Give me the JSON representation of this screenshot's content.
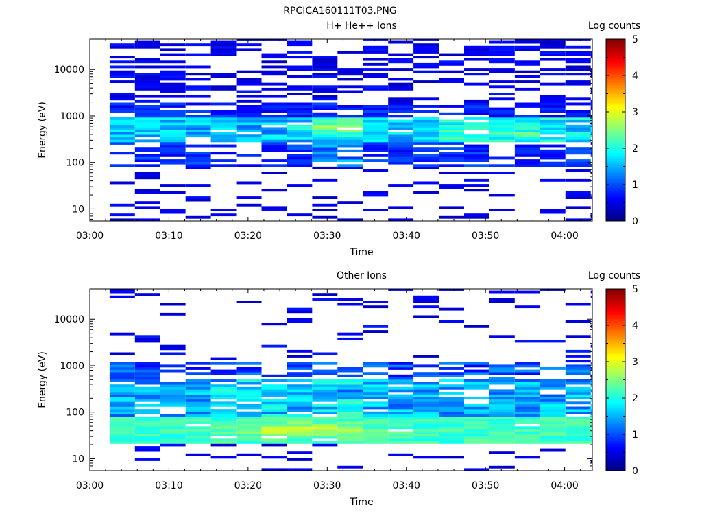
{
  "title": "RPCICA160111T03.PNG",
  "chart_data": [
    {
      "type": "heatmap",
      "title": "H+ He++ Ions",
      "xlabel": "Time",
      "ylabel": "Energy (eV)",
      "x_ticks": [
        "03:00",
        "03:10",
        "03:20",
        "03:30",
        "03:40",
        "03:50",
        "04:00"
      ],
      "x_range_minutes": [
        0,
        63.5
      ],
      "y_scale": "log",
      "y_range": [
        5.5,
        45000
      ],
      "y_ticks": [
        "10",
        "100",
        "1000",
        "10000"
      ],
      "colorbar": {
        "label": "Log counts",
        "range": [
          0,
          5
        ],
        "ticks": [
          "0",
          "1",
          "2",
          "3",
          "4",
          "5"
        ]
      },
      "time_bin_minutes": 3.2,
      "features": {
        "peak": {
          "time": "03:32",
          "energy_eV": 600,
          "log_counts": 3.0
        },
        "moderate_band": {
          "energy_eV": [
            300,
            800
          ],
          "log_counts": [
            1.5,
            2.5
          ]
        },
        "background_log_counts": [
          0.5,
          1.0
        ]
      }
    },
    {
      "type": "heatmap",
      "title": "Other Ions",
      "xlabel": "Time",
      "ylabel": "Energy (eV)",
      "x_ticks": [
        "03:00",
        "03:10",
        "03:20",
        "03:30",
        "03:40",
        "03:50",
        "04:00"
      ],
      "x_range_minutes": [
        0,
        63.5
      ],
      "y_scale": "log",
      "y_range": [
        5.5,
        45000
      ],
      "y_ticks": [
        "10",
        "100",
        "1000",
        "10000"
      ],
      "colorbar": {
        "label": "Log counts",
        "range": [
          0,
          5
        ],
        "ticks": [
          "0",
          "1",
          "2",
          "3",
          "4",
          "5"
        ]
      },
      "time_bin_minutes": 3.2,
      "features": {
        "band": {
          "energy_eV": [
            25,
            80
          ],
          "log_counts": [
            2.0,
            3.0
          ]
        },
        "peak": {
          "time": "03:27",
          "energy_eV": 45,
          "log_counts": 3.0
        },
        "moderate_region": {
          "energy_eV": [
            80,
            500
          ],
          "log_counts": [
            1.0,
            2.0
          ]
        },
        "background_log_counts": [
          0.5,
          1.0
        ]
      }
    }
  ]
}
